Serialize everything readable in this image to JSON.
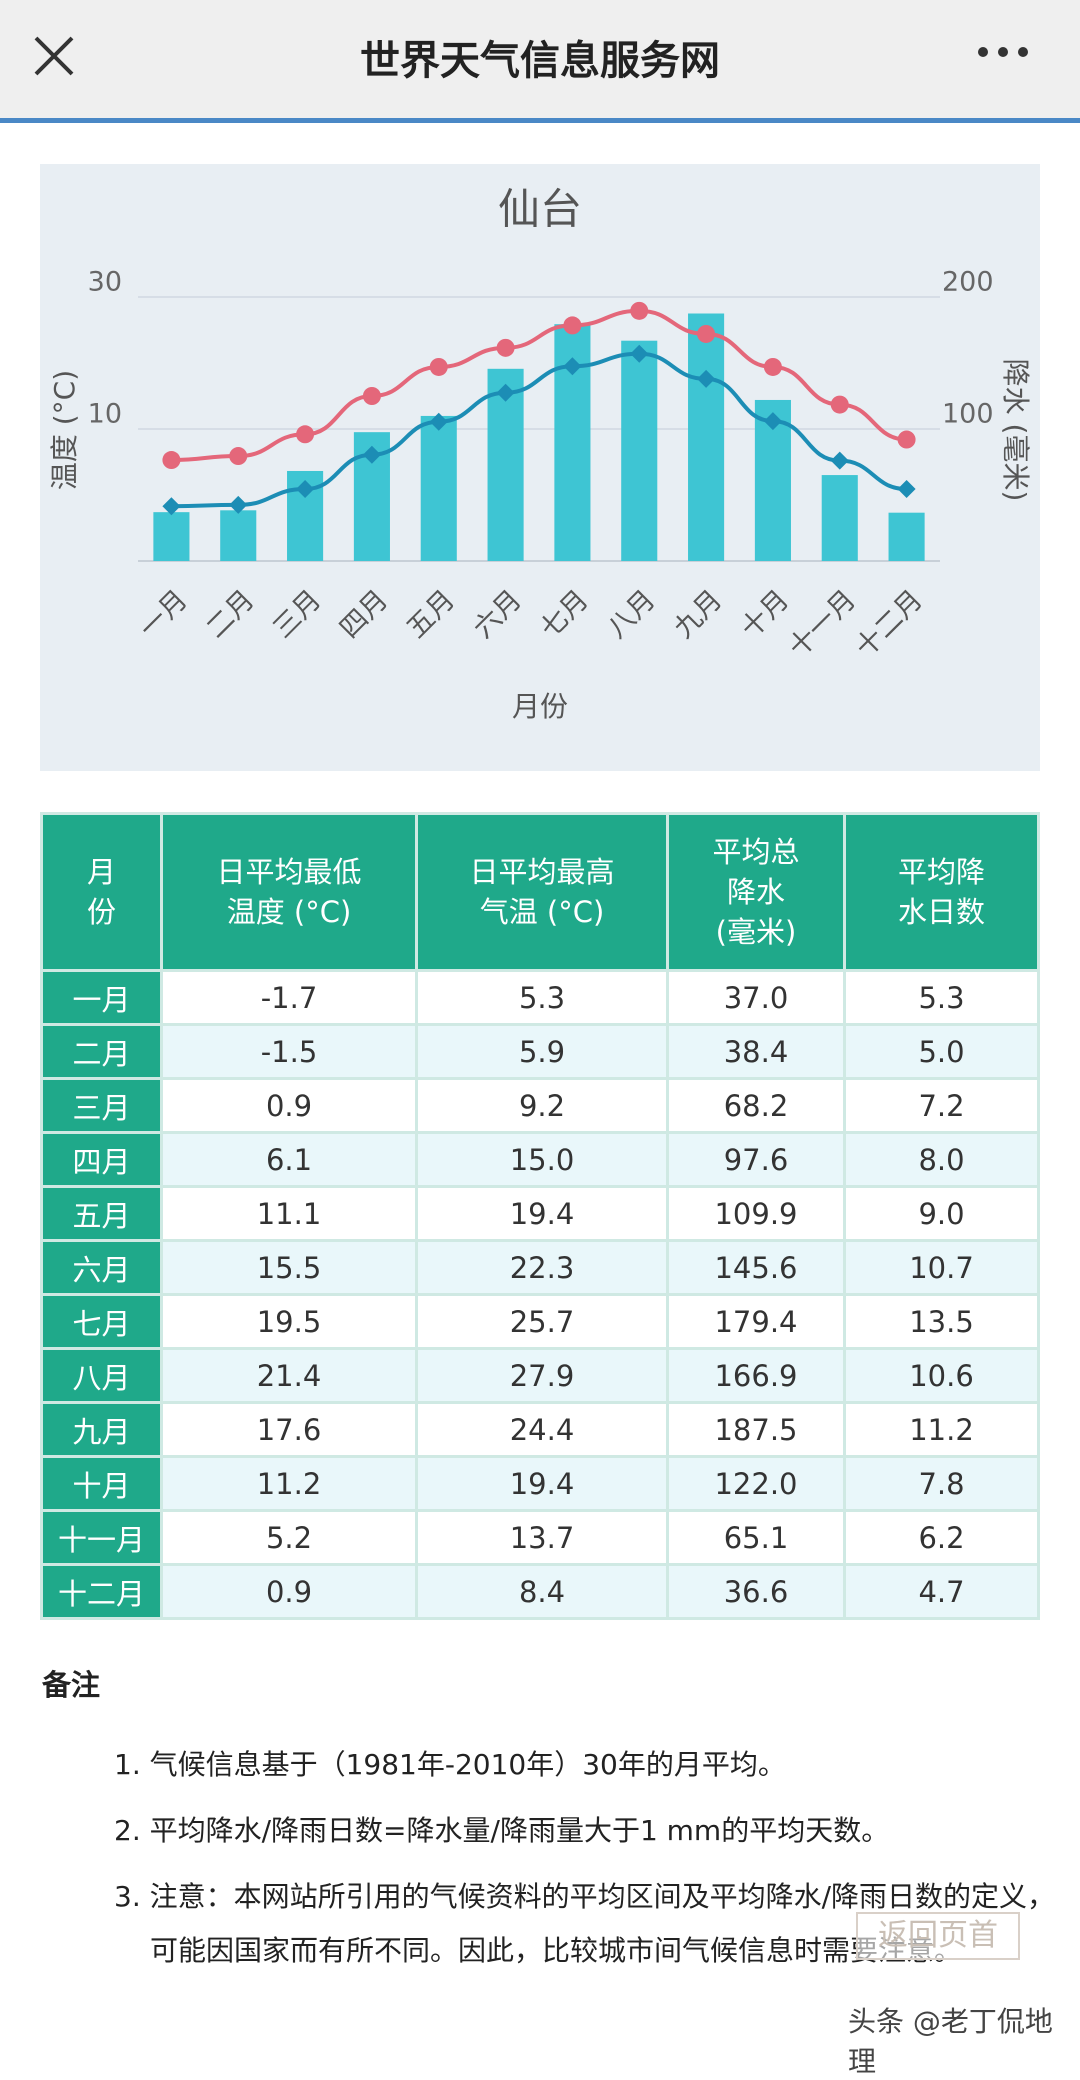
{
  "top_bar": {
    "title": "世界天气信息服务网"
  },
  "chart_data": {
    "type": "bar_line",
    "title": "仙台",
    "x_label": "月份",
    "y_label": "温度 (°C)",
    "y2_label": "降水 (毫米)",
    "categories": [
      "一月",
      "二月",
      "三月",
      "四月",
      "五月",
      "六月",
      "七月",
      "八月",
      "九月",
      "十月",
      "十一月",
      "十二月"
    ],
    "ylim": [
      -10,
      30
    ],
    "yticks": [
      10,
      30
    ],
    "y2lim": [
      0,
      200
    ],
    "y2ticks": [
      100,
      200
    ],
    "grid": true,
    "series": [
      {
        "type": "bar",
        "axis": "y2",
        "color": "#3ec5d3",
        "values": [
          37.0,
          38.4,
          68.2,
          97.6,
          109.9,
          145.6,
          179.4,
          166.9,
          187.5,
          122.0,
          65.1,
          36.6
        ]
      },
      {
        "type": "line",
        "marker": "circle",
        "color": "#e4677a",
        "values": [
          5.3,
          5.9,
          9.2,
          15.0,
          19.4,
          22.3,
          25.7,
          27.9,
          24.4,
          19.4,
          13.7,
          8.4
        ]
      },
      {
        "type": "line",
        "marker": "diamond",
        "color": "#1c8db5",
        "values": [
          -1.7,
          -1.5,
          0.9,
          6.1,
          11.1,
          15.5,
          19.5,
          21.4,
          17.6,
          11.2,
          5.2,
          0.9
        ]
      }
    ]
  },
  "table": {
    "headers": [
      [
        "月",
        "份"
      ],
      [
        "日平均最低",
        "温度 (°C)"
      ],
      [
        "日平均最高",
        "气温 (°C)"
      ],
      [
        "平均总",
        "降水",
        "(毫米)"
      ],
      [
        "平均降",
        "水日数"
      ]
    ],
    "rows": [
      [
        "一月",
        "-1.7",
        "5.3",
        "37.0",
        "5.3"
      ],
      [
        "二月",
        "-1.5",
        "5.9",
        "38.4",
        "5.0"
      ],
      [
        "三月",
        "0.9",
        "9.2",
        "68.2",
        "7.2"
      ],
      [
        "四月",
        "6.1",
        "15.0",
        "97.6",
        "8.0"
      ],
      [
        "五月",
        "11.1",
        "19.4",
        "109.9",
        "9.0"
      ],
      [
        "六月",
        "15.5",
        "22.3",
        "145.6",
        "10.7"
      ],
      [
        "七月",
        "19.5",
        "25.7",
        "179.4",
        "13.5"
      ],
      [
        "八月",
        "21.4",
        "27.9",
        "166.9",
        "10.6"
      ],
      [
        "九月",
        "17.6",
        "24.4",
        "187.5",
        "11.2"
      ],
      [
        "十月",
        "11.2",
        "19.4",
        "122.0",
        "7.8"
      ],
      [
        "十一月",
        "5.2",
        "13.7",
        "65.1",
        "6.2"
      ],
      [
        "十二月",
        "0.9",
        "8.4",
        "36.6",
        "4.7"
      ]
    ]
  },
  "notes": {
    "title": "备注",
    "items": [
      "1. 气候信息基于（1981年-2010年）30年的月平均。",
      "2. 平均降水/降雨日数=降水量/降雨量大于1 mm的平均天数。",
      "3. 注意：本网站所引用的气候资料的平均区间及平均降水/降雨日数的定义，可能因国家而有所不同。因此，比较城市间气候信息时需要注意。"
    ]
  },
  "watermark": {
    "back_to_top": "返回页首",
    "source": "头条 @老丁侃地理"
  }
}
